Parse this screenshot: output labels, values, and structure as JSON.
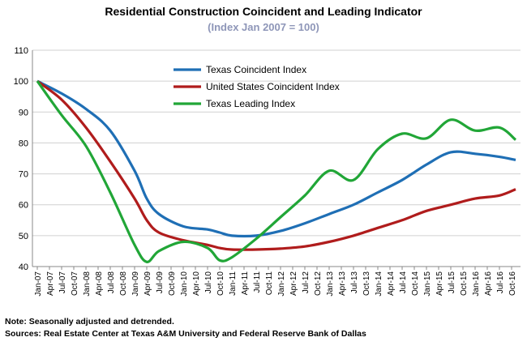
{
  "chart_data": {
    "type": "line",
    "title": "Residential Construction Coincident and Leading Indicator",
    "subtitle": "(Index Jan 2007 = 100)",
    "ylim": [
      40,
      110
    ],
    "yticks": [
      40,
      50,
      60,
      70,
      80,
      90,
      100,
      110
    ],
    "grid": "horizontal",
    "legend_position": "top-center",
    "x_labels": [
      "Jan-07",
      "Apr-07",
      "Jul-07",
      "Oct-07",
      "Jan-08",
      "Apr-08",
      "Jul-08",
      "Oct-08",
      "Jan-09",
      "Apr-09",
      "Jul-09",
      "Oct-09",
      "Jan-10",
      "Apr-10",
      "Jul-10",
      "Oct-10",
      "Jan-11",
      "Apr-11",
      "Jul-11",
      "Oct-11",
      "Jan-12",
      "Apr-12",
      "Jul-12",
      "Oct-12",
      "Jan-13",
      "Apr-13",
      "Jul-13",
      "Oct-13",
      "Jan-14",
      "Apr-14",
      "Jul-14",
      "Oct-14",
      "Jan-15",
      "Apr-15",
      "Jul-15",
      "Oct-15",
      "Jan-16",
      "Apr-16",
      "Jul-16",
      "Oct-16"
    ],
    "x": [
      "Jan-07",
      "Jul-07",
      "Jan-08",
      "Jul-08",
      "Jan-09",
      "Apr-09",
      "Jul-09",
      "Jan-10",
      "Jul-10",
      "Oct-10",
      "Jan-11",
      "Jul-11",
      "Jan-12",
      "Jul-12",
      "Jan-13",
      "Jul-13",
      "Jan-14",
      "Jul-14",
      "Jan-15",
      "Jul-15",
      "Jan-16",
      "Jul-16",
      "Nov-16"
    ],
    "series": [
      {
        "name": "Texas Coincident Index",
        "color": "#1f6fb5",
        "values": [
          100,
          96,
          91,
          84,
          71,
          62,
          57,
          53,
          52,
          51,
          50,
          50,
          51.5,
          54,
          57,
          60,
          64,
          68,
          73,
          77,
          76.5,
          75.5,
          74.5
        ]
      },
      {
        "name": "United States Coincident Index",
        "color": "#b01c1c",
        "values": [
          100,
          94,
          85,
          74,
          62,
          55,
          51,
          48.5,
          47,
          46,
          45.5,
          45.5,
          45.8,
          46.5,
          48,
          50,
          52.5,
          55,
          58,
          60,
          62,
          63,
          65
        ]
      },
      {
        "name": "Texas Leading Index",
        "color": "#21a637",
        "values": [
          100,
          89,
          79,
          64,
          47,
          41.5,
          45,
          48,
          46,
          42,
          43,
          49,
          56,
          63,
          71,
          68,
          78,
          83,
          81.5,
          87.5,
          84,
          85,
          81
        ]
      }
    ]
  },
  "notes": {
    "line1": "Note: Seasonally adjusted and detrended.",
    "line2": "Sources: Real Estate Center at Texas A&M University and Federal Reserve Bank of Dallas"
  }
}
